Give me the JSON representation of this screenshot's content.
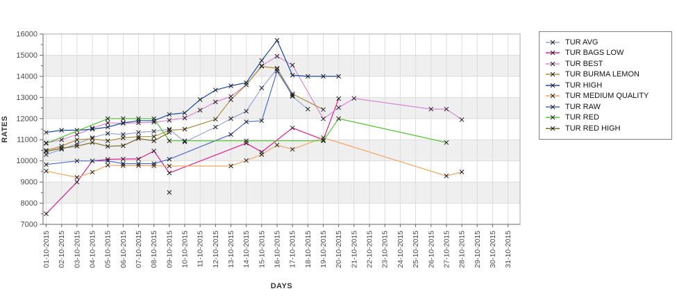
{
  "chart_data": {
    "type": "line",
    "title": "",
    "xlabel": "DAYS",
    "ylabel": "RATES",
    "ylim": [
      7000,
      16000
    ],
    "y_tick_step": 1000,
    "y_minor_tick_step": 500,
    "grid": "vertical day gridlines, horizontal gridlines, alternating gray bands",
    "gray_bands": [
      [
        8000,
        9000
      ],
      [
        10000,
        11000
      ],
      [
        12000,
        13000
      ],
      [
        14000,
        15000
      ]
    ],
    "legend_position": "right",
    "marker": "black-x",
    "x_tick_labels": [
      "01-10-2015",
      "02-10-2015",
      "03-10-2015",
      "04-10-2015",
      "05-10-2015",
      "06-10-2015",
      "07-10-2015",
      "08-10-2015",
      "09-10-2015",
      "10-10-2015",
      "11-10-2015",
      "12-10-2015",
      "13-10-2015",
      "14-10-2015",
      "15-10-2015",
      "16-10-2015",
      "17-10-2015",
      "18-10-2015",
      "19-10-2015",
      "20-10-2015",
      "21-10-2015",
      "22-10-2015",
      "23-10-2015",
      "24-10-2015",
      "25-10-2015",
      "26-10-2015",
      "27-10-2015",
      "28-10-2015",
      "29-10-2015",
      "30-10-2015",
      "31-10-2015"
    ],
    "series": [
      {
        "name": "TUR AVG",
        "color": "#97a5d6",
        "points": [
          [
            1,
            10300
          ],
          [
            2,
            10550
          ],
          [
            3,
            10800
          ],
          [
            4,
            11100
          ],
          [
            5,
            11300
          ],
          [
            6,
            11250
          ],
          [
            7,
            11350
          ],
          [
            8,
            11400
          ],
          [
            9,
            11500
          ],
          [
            10,
            10900
          ],
          [
            12,
            11600
          ],
          [
            13,
            12000
          ],
          [
            14,
            12350
          ],
          [
            15,
            13450
          ],
          [
            16,
            14350
          ],
          [
            17,
            13050
          ],
          [
            18,
            12450
          ]
        ]
      },
      {
        "name": "TUR BAGS LOW",
        "color": "#de1f8e",
        "points": [
          [
            1,
            7500
          ],
          [
            3,
            9000
          ],
          [
            4,
            10000
          ],
          [
            5,
            10070
          ],
          [
            6,
            10090
          ],
          [
            7,
            10090
          ],
          [
            8,
            10470
          ],
          [
            9,
            9430
          ],
          [
            14,
            10840
          ],
          [
            15,
            10420
          ],
          [
            17,
            11560
          ],
          [
            19,
            11000
          ],
          [
            20,
            12950
          ]
        ]
      },
      {
        "name": "TUR BEST",
        "color": "#d488d4",
        "points": [
          [
            1,
            10850
          ],
          [
            2,
            11000
          ],
          [
            3,
            11250
          ],
          [
            4,
            11550
          ],
          [
            5,
            11800
          ],
          [
            6,
            11780
          ],
          [
            7,
            11800
          ],
          [
            8,
            11830
          ],
          [
            9,
            11920
          ],
          [
            10,
            12030
          ],
          [
            11,
            12400
          ],
          [
            12,
            12790
          ],
          [
            13,
            13050
          ],
          [
            14,
            13600
          ],
          [
            15,
            14500
          ],
          [
            16,
            14950
          ],
          [
            17,
            14530
          ],
          [
            19,
            11990
          ],
          [
            20,
            12520
          ],
          [
            21,
            12960
          ],
          [
            26,
            12450
          ],
          [
            27,
            12450
          ],
          [
            28,
            11950
          ]
        ]
      },
      {
        "name": "TUR BURMA LEMON",
        "color": "#ad8d3c",
        "points": [
          [
            1,
            10500
          ],
          [
            2,
            10700
          ],
          [
            3,
            11000
          ],
          [
            4,
            11050
          ],
          [
            5,
            10950
          ],
          [
            6,
            11090
          ],
          [
            7,
            11150
          ],
          [
            8,
            11150
          ],
          [
            9,
            11450
          ],
          [
            10,
            11500
          ],
          [
            12,
            11970
          ],
          [
            13,
            12900
          ],
          [
            14,
            13600
          ],
          [
            15,
            14470
          ],
          [
            16,
            14380
          ],
          [
            17,
            13170
          ],
          [
            19,
            12430
          ]
        ]
      },
      {
        "name": "TUR HIGH",
        "color": "#1b4aa0",
        "points": [
          [
            1,
            11350
          ],
          [
            2,
            11450
          ],
          [
            3,
            11450
          ],
          [
            4,
            11500
          ],
          [
            5,
            11600
          ],
          [
            6,
            11800
          ],
          [
            7,
            11900
          ],
          [
            8,
            11900
          ],
          [
            9,
            12200
          ],
          [
            10,
            12270
          ],
          [
            11,
            12900
          ],
          [
            12,
            13350
          ],
          [
            13,
            13550
          ],
          [
            14,
            13700
          ],
          [
            15,
            14750
          ],
          [
            16,
            15700
          ],
          [
            17,
            14050
          ],
          [
            18,
            14000
          ],
          [
            19,
            14000
          ],
          [
            20,
            14000
          ]
        ]
      },
      {
        "name": "TUR MEDIUM QUALITY",
        "color": "#f4a45e",
        "points": [
          [
            1,
            9520
          ],
          [
            3,
            9220
          ],
          [
            4,
            9470
          ],
          [
            5,
            9800
          ],
          [
            6,
            9780
          ],
          [
            7,
            9780
          ],
          [
            8,
            9770
          ],
          [
            9,
            9760
          ],
          [
            13,
            9760
          ],
          [
            14,
            10020
          ],
          [
            15,
            10300
          ],
          [
            16,
            10750
          ],
          [
            17,
            10550
          ],
          [
            19,
            11100
          ],
          [
            27,
            9290
          ],
          [
            28,
            9480
          ]
        ]
      },
      {
        "name": "TUR RAW",
        "color": "#4a69c8",
        "points": [
          [
            1,
            9830
          ],
          [
            3,
            10000
          ],
          [
            4,
            10000
          ],
          [
            5,
            10000
          ],
          [
            6,
            9870
          ],
          [
            7,
            9870
          ],
          [
            8,
            9870
          ],
          [
            9,
            10080
          ],
          [
            13,
            11250
          ],
          [
            14,
            11850
          ],
          [
            15,
            11900
          ],
          [
            16,
            14250
          ],
          [
            17,
            13100
          ]
        ]
      },
      {
        "name": "TUR RED",
        "color": "#52c02e",
        "points": [
          [
            1,
            10830
          ],
          [
            5,
            12000
          ],
          [
            6,
            12000
          ],
          [
            7,
            12000
          ],
          [
            8,
            12000
          ],
          [
            9,
            10950
          ],
          [
            10,
            10950
          ],
          [
            14,
            10950
          ],
          [
            19,
            10950
          ],
          [
            20,
            12000
          ],
          [
            27,
            10870
          ]
        ]
      },
      {
        "name": "TUR RED HIGH",
        "color": "#7a681f",
        "points": [
          [
            1,
            10450
          ],
          [
            2,
            10600
          ],
          [
            3,
            10700
          ],
          [
            4,
            10870
          ],
          [
            5,
            10690
          ],
          [
            6,
            10720
          ],
          [
            7,
            11060
          ],
          [
            8,
            10950
          ],
          [
            9,
            11350
          ]
        ]
      }
    ],
    "stray_point": {
      "day": 9,
      "value": 8510,
      "note": "isolated x marker with no connecting line"
    }
  },
  "style": {
    "band_color": "#efefef",
    "grid_color": "#dcdcdc",
    "plot_border_color": "#aaaaaa",
    "axis_color": "#666666",
    "tick_label_color": "#4a4a4a",
    "marker_color": "#1a1a1a"
  }
}
